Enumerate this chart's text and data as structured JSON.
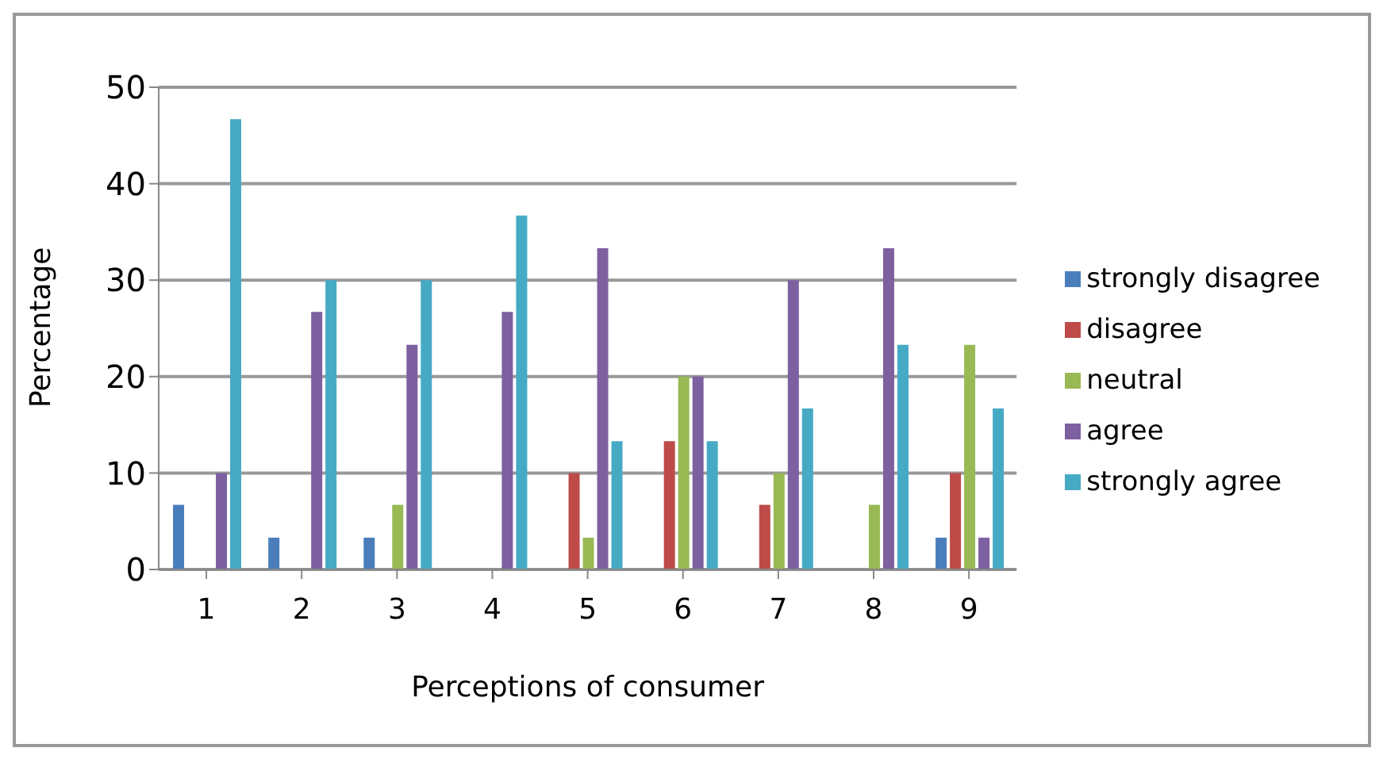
{
  "chart_data": {
    "type": "bar",
    "xlabel": "Perceptions of consumer",
    "ylabel": "Percentage",
    "categories": [
      "1",
      "2",
      "3",
      "4",
      "5",
      "6",
      "7",
      "8",
      "9"
    ],
    "series": [
      {
        "name": "strongly disagree",
        "color": "#4a7ebb",
        "values": [
          6.7,
          3.3,
          3.3,
          0,
          0,
          0,
          0,
          0,
          3.3
        ]
      },
      {
        "name": "disagree",
        "color": "#be4b48",
        "values": [
          0,
          0,
          0,
          0,
          10,
          13.3,
          6.7,
          0,
          10
        ]
      },
      {
        "name": "neutral",
        "color": "#98b954",
        "values": [
          0,
          0,
          6.7,
          0,
          3.3,
          20,
          10,
          6.7,
          23.3
        ]
      },
      {
        "name": "agree",
        "color": "#7d60a0",
        "values": [
          10,
          26.7,
          23.3,
          26.7,
          33.3,
          20,
          30,
          33.3,
          3.3
        ]
      },
      {
        "name": "strongly agree",
        "color": "#46aac5",
        "values": [
          46.7,
          30,
          30,
          36.7,
          13.3,
          13.3,
          16.7,
          23.3,
          16.7
        ]
      }
    ],
    "ylim": [
      0,
      50
    ],
    "yticks": [
      0,
      10,
      20,
      30,
      40,
      50
    ],
    "grid": "y",
    "legend": "right"
  }
}
